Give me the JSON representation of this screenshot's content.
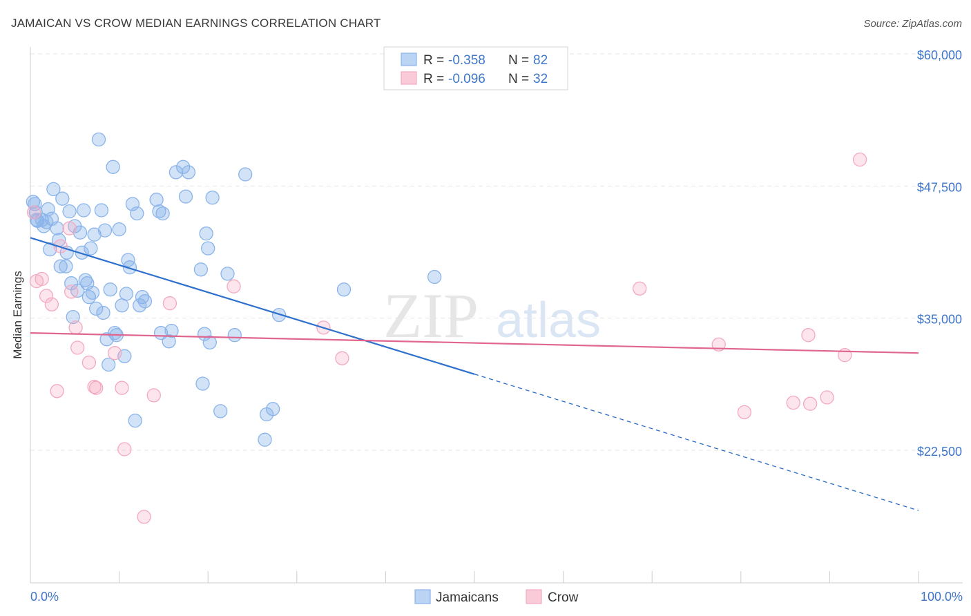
{
  "chart_data": {
    "type": "scatter",
    "title": "JAMAICAN VS CROW MEDIAN EARNINGS CORRELATION CHART",
    "source": "Source: ZipAtlas.com",
    "xlabel": "",
    "ylabel": "Median Earnings",
    "xlim": [
      0,
      100
    ],
    "ylim": [
      11000,
      62000
    ],
    "x_tick_labels": {
      "min": "0.0%",
      "max": "100.0%"
    },
    "y_ticks": [
      {
        "value": 22500,
        "label": "$22,500"
      },
      {
        "value": 35000,
        "label": "$35,000"
      },
      {
        "value": 47500,
        "label": "$47,500"
      },
      {
        "value": 60000,
        "label": "$60,000"
      }
    ],
    "grid": true,
    "watermark": {
      "zip": "ZIP",
      "atlas": "atlas"
    },
    "legend": {
      "entries": [
        {
          "r_label": "R =",
          "r_value": "-0.358",
          "n_label": "N =",
          "n_value": "82"
        },
        {
          "r_label": "R =",
          "r_value": "-0.096",
          "n_label": "N =",
          "n_value": "32"
        }
      ]
    },
    "series": [
      {
        "name": "Jamaicans",
        "color": "#8ab4ea",
        "line_color": "#2c6fcc",
        "r": -0.358,
        "n": 82,
        "trend": {
          "x_start": 0,
          "y_start": 42600,
          "x_solid_end": 50,
          "y_solid_end": 29700,
          "x_end": 100,
          "y_end": 16800
        },
        "points": [
          [
            0.3,
            46.0
          ],
          [
            0.5,
            45.8
          ],
          [
            0.6,
            45.0
          ],
          [
            0.7,
            44.3
          ],
          [
            0.8,
            44.2
          ],
          [
            1.3,
            44.3
          ],
          [
            1.5,
            43.7
          ],
          [
            1.8,
            44.1
          ],
          [
            2.0,
            45.3
          ],
          [
            2.2,
            41.5
          ],
          [
            2.4,
            44.4
          ],
          [
            2.6,
            47.2
          ],
          [
            3.0,
            43.5
          ],
          [
            3.2,
            42.4
          ],
          [
            3.4,
            39.9
          ],
          [
            3.6,
            46.3
          ],
          [
            4.0,
            39.9
          ],
          [
            4.1,
            41.2
          ],
          [
            4.4,
            45.1
          ],
          [
            4.6,
            38.3
          ],
          [
            4.8,
            35.1
          ],
          [
            5.0,
            43.7
          ],
          [
            5.3,
            37.6
          ],
          [
            5.6,
            43.1
          ],
          [
            5.8,
            41.2
          ],
          [
            6.0,
            45.2
          ],
          [
            6.2,
            38.6
          ],
          [
            6.4,
            38.3
          ],
          [
            6.6,
            37.0
          ],
          [
            6.8,
            41.6
          ],
          [
            7.0,
            37.4
          ],
          [
            7.2,
            42.9
          ],
          [
            7.4,
            35.9
          ],
          [
            7.7,
            51.9
          ],
          [
            8.0,
            45.2
          ],
          [
            8.2,
            35.5
          ],
          [
            8.4,
            43.3
          ],
          [
            8.6,
            33.0
          ],
          [
            8.8,
            30.6
          ],
          [
            9.0,
            37.7
          ],
          [
            9.3,
            49.3
          ],
          [
            9.5,
            33.6
          ],
          [
            9.7,
            33.4
          ],
          [
            10.0,
            43.4
          ],
          [
            10.3,
            36.2
          ],
          [
            10.6,
            31.4
          ],
          [
            10.8,
            37.3
          ],
          [
            11.0,
            40.5
          ],
          [
            11.2,
            39.8
          ],
          [
            11.5,
            45.8
          ],
          [
            11.8,
            25.3
          ],
          [
            12.0,
            44.9
          ],
          [
            12.3,
            36.2
          ],
          [
            12.6,
            37.0
          ],
          [
            12.9,
            36.6
          ],
          [
            14.2,
            46.2
          ],
          [
            14.5,
            45.1
          ],
          [
            14.7,
            33.6
          ],
          [
            14.9,
            44.9
          ],
          [
            15.6,
            32.8
          ],
          [
            15.9,
            33.8
          ],
          [
            16.4,
            48.8
          ],
          [
            17.2,
            49.3
          ],
          [
            17.5,
            46.5
          ],
          [
            17.8,
            48.8
          ],
          [
            19.2,
            39.6
          ],
          [
            19.4,
            28.8
          ],
          [
            19.6,
            33.5
          ],
          [
            19.8,
            43.0
          ],
          [
            20.0,
            41.6
          ],
          [
            20.2,
            32.7
          ],
          [
            20.5,
            46.4
          ],
          [
            21.4,
            26.2
          ],
          [
            22.2,
            39.2
          ],
          [
            23.0,
            33.4
          ],
          [
            24.2,
            48.6
          ],
          [
            26.4,
            23.5
          ],
          [
            26.6,
            25.9
          ],
          [
            27.3,
            26.4
          ],
          [
            28.0,
            35.3
          ],
          [
            35.3,
            37.7
          ],
          [
            45.5,
            38.9
          ]
        ]
      },
      {
        "name": "Crow",
        "color": "#f4a9c0",
        "line_color": "#e06690",
        "r": -0.096,
        "n": 32,
        "trend": {
          "x_start": 0,
          "y_start": 33600,
          "x_end": 100,
          "y_end": 31700
        },
        "points": [
          [
            0.4,
            45.0
          ],
          [
            0.7,
            38.5
          ],
          [
            1.3,
            38.7
          ],
          [
            1.8,
            37.1
          ],
          [
            2.4,
            36.3
          ],
          [
            3.0,
            28.1
          ],
          [
            3.4,
            41.8
          ],
          [
            4.4,
            43.5
          ],
          [
            4.6,
            37.5
          ],
          [
            5.1,
            34.1
          ],
          [
            5.3,
            32.2
          ],
          [
            6.6,
            30.8
          ],
          [
            7.2,
            28.5
          ],
          [
            7.4,
            28.4
          ],
          [
            9.5,
            31.7
          ],
          [
            10.3,
            28.4
          ],
          [
            10.6,
            22.6
          ],
          [
            12.8,
            16.2
          ],
          [
            13.9,
            27.7
          ],
          [
            15.7,
            36.4
          ],
          [
            22.9,
            38.0
          ],
          [
            33.0,
            34.1
          ],
          [
            35.1,
            31.2
          ],
          [
            68.6,
            37.8
          ],
          [
            77.5,
            32.5
          ],
          [
            80.4,
            26.1
          ],
          [
            85.9,
            27.0
          ],
          [
            87.6,
            33.4
          ],
          [
            87.8,
            26.9
          ],
          [
            89.7,
            27.5
          ],
          [
            91.7,
            31.5
          ],
          [
            93.4,
            50.0
          ]
        ]
      }
    ]
  }
}
